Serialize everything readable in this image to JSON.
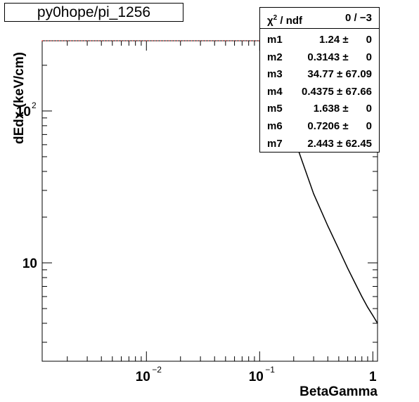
{
  "title": "py0hope/pi_1256",
  "stats": {
    "header_label": "χ² / ndf",
    "header_chi": "χ",
    "header_sup": "2",
    "header_rest": " / ndf",
    "header_value": "0 / −3",
    "rows": [
      {
        "name": "m1",
        "value": "1.24 ±      0"
      },
      {
        "name": "m2",
        "value": "0.3143 ±      0"
      },
      {
        "name": "m3",
        "value": "34.77 ± 67.09"
      },
      {
        "name": "m4",
        "value": "0.4375 ± 67.66"
      },
      {
        "name": "m5",
        "value": "1.638 ±      0"
      },
      {
        "name": "m6",
        "value": "0.7206 ±      0"
      },
      {
        "name": "m7",
        "value": "2.443 ± 62.45"
      }
    ]
  },
  "chart_data": {
    "type": "line",
    "title": "py0hope/pi_1256",
    "xlabel": "BetaGamma",
    "ylabel": "dEdx (keV/cm)",
    "x_scale": "log",
    "y_scale": "log",
    "xlim": [
      0.0012,
      1.1
    ],
    "ylim": [
      2.25,
      290
    ],
    "x_tick_labels": [
      {
        "value": 0.01,
        "base": "10",
        "exp": "−2"
      },
      {
        "value": 0.1,
        "base": "10",
        "exp": "−1"
      },
      {
        "value": 1,
        "base": "1",
        "exp": ""
      }
    ],
    "y_tick_labels": [
      {
        "value": 10,
        "base": "10",
        "exp": ""
      },
      {
        "value": 100,
        "base": "10",
        "exp": "2"
      }
    ],
    "grid": false,
    "series": [
      {
        "color": "#ff0000",
        "style": "dotted",
        "x": [
          0.0012,
          0.01,
          0.05,
          0.1,
          0.15,
          0.2,
          0.22
        ],
        "y": [
          290,
          290,
          290,
          290,
          200,
          75,
          55
        ]
      },
      {
        "color": "#000000",
        "style": "solid",
        "x": [
          0.22,
          0.3,
          0.4,
          0.5,
          0.6,
          0.7,
          0.8,
          0.9,
          1.0,
          1.1
        ],
        "y": [
          55,
          28.5,
          17.5,
          12.3,
          9.2,
          7.3,
          6.0,
          5.1,
          4.5,
          4.0
        ]
      }
    ]
  }
}
